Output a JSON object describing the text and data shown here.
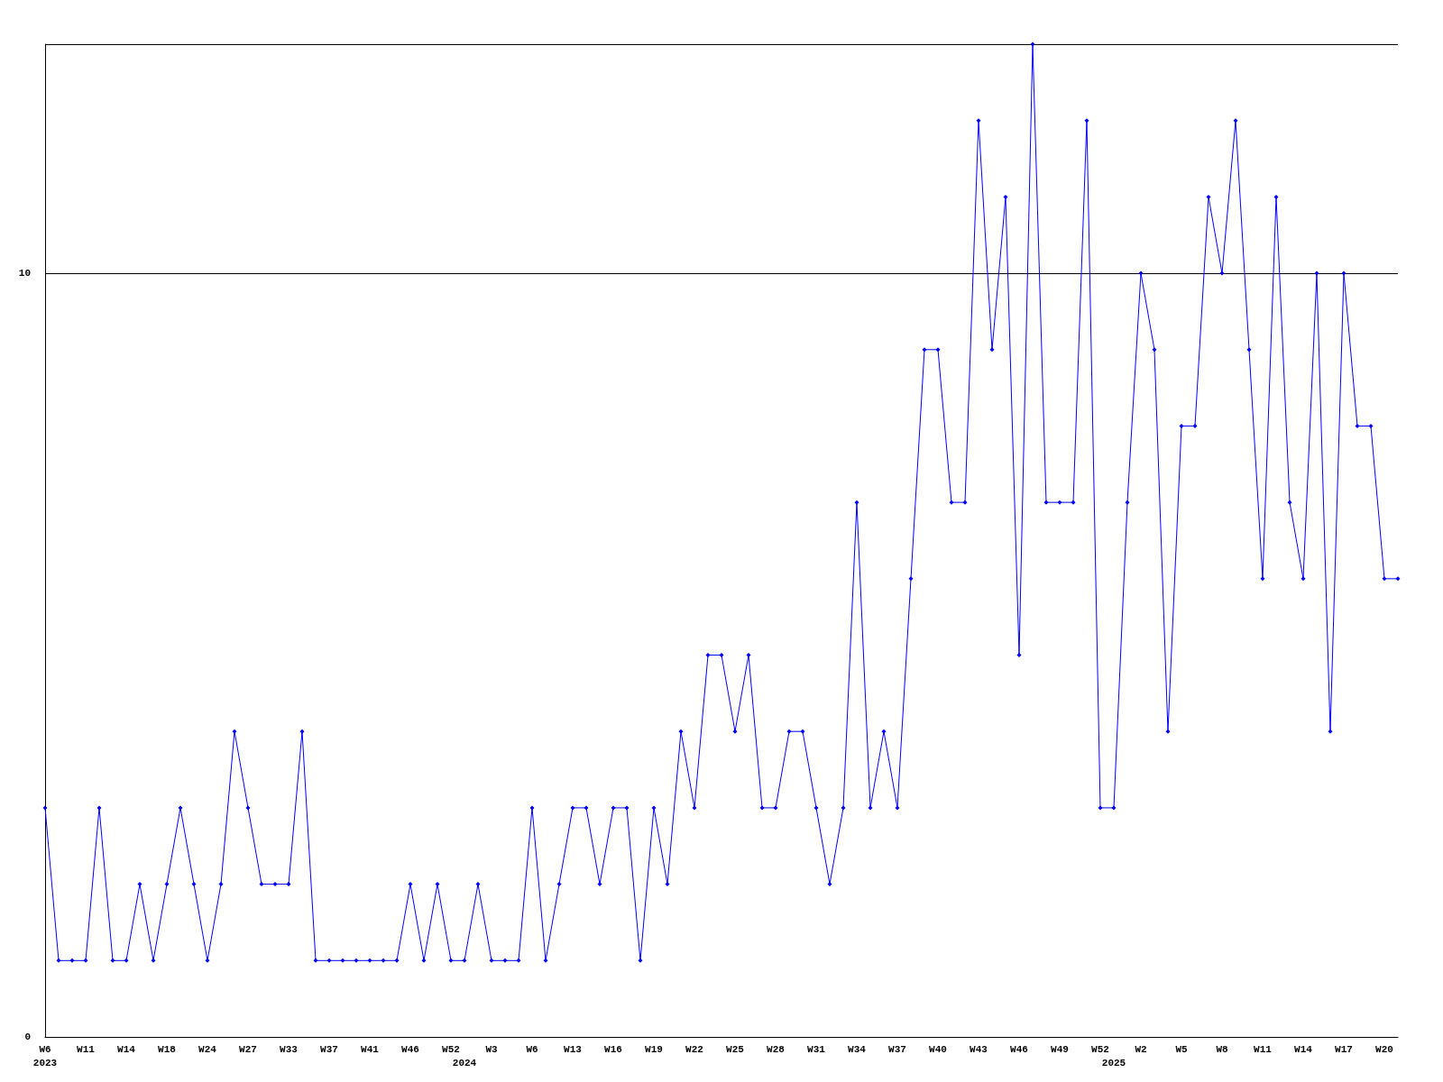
{
  "chart_data": {
    "type": "line",
    "categories": [
      "W6\n2023",
      null,
      null,
      "W11",
      null,
      null,
      "W14",
      null,
      null,
      "W18",
      null,
      null,
      "W24",
      null,
      null,
      "W27",
      null,
      null,
      "W33",
      null,
      null,
      "W37",
      null,
      null,
      "W41",
      null,
      null,
      "W46",
      null,
      null,
      "W52",
      "\n2024",
      null,
      "W3",
      null,
      null,
      "W6",
      null,
      null,
      "W13",
      null,
      null,
      "W16",
      null,
      null,
      "W19",
      null,
      null,
      "W22",
      null,
      null,
      "W25",
      null,
      null,
      "W28",
      null,
      null,
      "W31",
      null,
      null,
      "W34",
      null,
      null,
      "W37",
      null,
      null,
      "W40",
      null,
      null,
      "W43",
      null,
      null,
      "W46",
      null,
      null,
      "W49",
      null,
      null,
      "W52",
      "\n2025",
      null,
      "W2",
      null,
      null,
      "W5",
      null,
      null,
      "W8",
      null,
      null,
      "W11",
      null,
      null,
      "W14",
      null,
      null,
      "W17",
      null,
      null,
      "W20",
      null
    ],
    "series": [
      {
        "color": "#0000ff",
        "values": [
          3,
          1,
          1,
          1,
          3,
          1,
          1,
          2,
          1,
          2,
          3,
          2,
          1,
          2,
          4,
          3,
          2,
          2,
          2,
          4,
          1,
          1,
          1,
          1,
          1,
          1,
          1,
          2,
          1,
          2,
          1,
          1,
          2,
          1,
          1,
          1,
          3,
          1,
          2,
          3,
          3,
          2,
          3,
          3,
          1,
          3,
          2,
          4,
          3,
          5,
          5,
          4,
          5,
          3,
          3,
          4,
          4,
          3,
          2,
          3,
          7,
          3,
          4,
          3,
          6,
          9,
          9,
          7,
          7,
          12,
          9,
          11,
          5,
          13,
          7,
          7,
          7,
          12,
          3,
          3,
          7,
          10,
          9,
          4,
          8,
          8,
          11,
          10,
          12,
          9,
          6,
          11,
          7,
          6,
          10,
          4,
          10,
          8,
          8,
          6,
          6
        ]
      }
    ],
    "ylim": [
      0,
      13
    ],
    "yticks": [
      0,
      10
    ],
    "grid": "y",
    "marker": "diamond",
    "line_style": "solid"
  }
}
